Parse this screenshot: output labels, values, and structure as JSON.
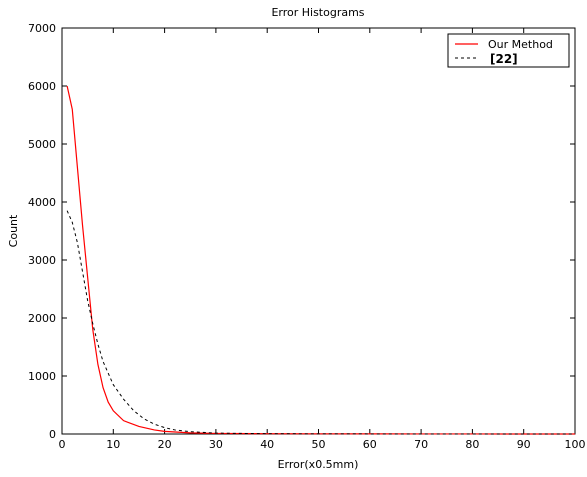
{
  "chart_data": {
    "type": "line",
    "title": "Error Histograms",
    "xlabel": "Error(x0.5mm)",
    "ylabel": "Count",
    "xlim": [
      0,
      100
    ],
    "ylim": [
      0,
      7000
    ],
    "x_ticks": [
      0,
      10,
      20,
      30,
      40,
      50,
      60,
      70,
      80,
      90,
      100
    ],
    "y_ticks": [
      0,
      1000,
      2000,
      3000,
      4000,
      5000,
      6000,
      7000
    ],
    "grid": false,
    "legend_position": "top-right",
    "series": [
      {
        "name": "Our Method",
        "color": "#ff0000",
        "style": "solid",
        "x": [
          1,
          2,
          3,
          4,
          5,
          6,
          7,
          8,
          9,
          10,
          12,
          15,
          18,
          20,
          25,
          30,
          40,
          50,
          60,
          70,
          80,
          90,
          100
        ],
        "y": [
          6000,
          5600,
          4600,
          3600,
          2700,
          1800,
          1200,
          800,
          550,
          400,
          230,
          130,
          70,
          45,
          20,
          10,
          5,
          3,
          2,
          1,
          1,
          0,
          0
        ]
      },
      {
        "name": "[22]",
        "color": "#000000",
        "style": "dashed",
        "x": [
          1,
          2,
          3,
          4,
          5,
          6,
          7,
          8,
          10,
          12,
          14,
          16,
          18,
          20,
          22,
          25,
          30,
          40,
          50,
          60,
          70,
          80,
          90,
          100
        ],
        "y": [
          3850,
          3650,
          3300,
          2800,
          2300,
          1900,
          1550,
          1250,
          850,
          600,
          400,
          260,
          170,
          110,
          70,
          40,
          15,
          5,
          2,
          1,
          0,
          0,
          0,
          0
        ]
      }
    ]
  }
}
